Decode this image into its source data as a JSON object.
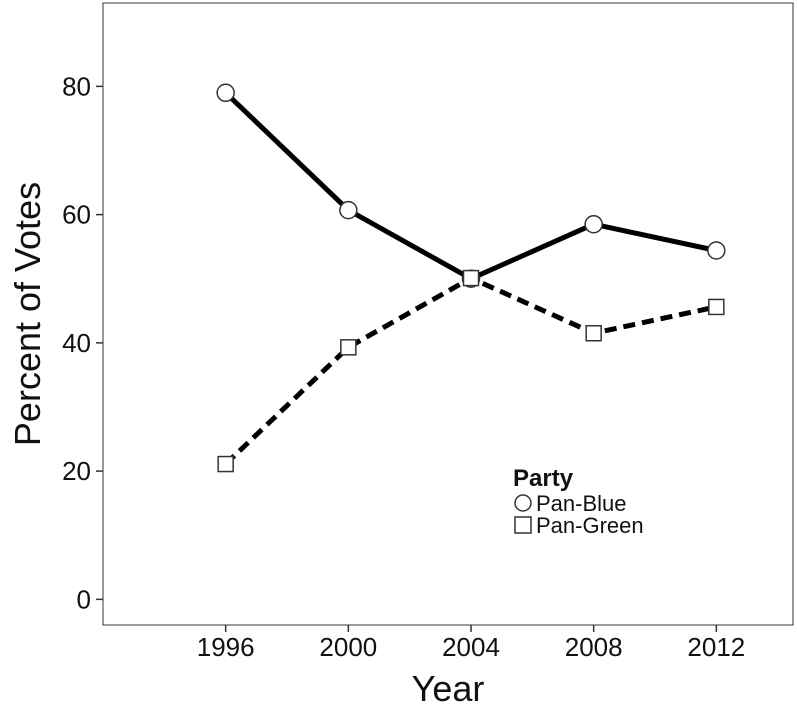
{
  "chart_data": {
    "type": "line",
    "xlabel": "Year",
    "ylabel": "Percent of Votes",
    "x": [
      1996,
      2000,
      2004,
      2008,
      2012
    ],
    "xlim": [
      1992,
      2014.5
    ],
    "ylim": [
      -4,
      93
    ],
    "yticks": [
      0,
      20,
      40,
      60,
      80
    ],
    "series": [
      {
        "name": "Pan-Blue",
        "values": [
          79,
          60.7,
          50,
          58.5,
          54.4
        ],
        "line_style": "solid",
        "marker": "circle"
      },
      {
        "name": "Pan-Green",
        "values": [
          21.1,
          39.3,
          50.1,
          41.5,
          45.6
        ],
        "line_style": "dashed",
        "marker": "square"
      }
    ],
    "legend": {
      "title": "Party",
      "placement": "inside-bottom-right"
    },
    "grid": false,
    "colors": {
      "line": "#000000",
      "marker_fill": "#ffffff",
      "frame": "#333333"
    }
  }
}
